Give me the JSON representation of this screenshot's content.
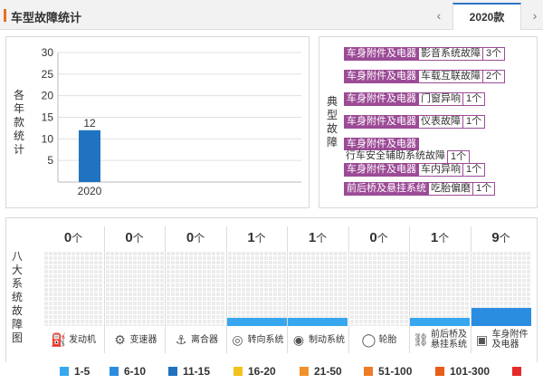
{
  "header": {
    "title": "车型故障统计",
    "prev_icon": "chevron-left-icon",
    "next_icon": "chevron-right-icon",
    "year_tab": "2020款"
  },
  "yearly_panel": {
    "label_chars": [
      "各",
      "年",
      "款",
      "统",
      "计"
    ],
    "chart_data": {
      "type": "bar",
      "categories": [
        "2020"
      ],
      "values": [
        12
      ],
      "ylim": [
        0,
        30
      ],
      "yticks": [
        5,
        10,
        15,
        20,
        25,
        30
      ],
      "bar_color": "#1f73c0",
      "data_labels": [
        "12"
      ]
    }
  },
  "typical_faults": {
    "label_chars": [
      "典",
      "型",
      "故",
      "障"
    ],
    "items": [
      {
        "category": "车身附件及电器",
        "fault": "影音系统故障",
        "count": "3个"
      },
      {
        "category": "车身附件及电器",
        "fault": "车载互联故障",
        "count": "2个"
      },
      {
        "category": "车身附件及电器",
        "fault": "门窗异响",
        "count": "1个"
      },
      {
        "category": "车身附件及电器",
        "fault": "仪表故障",
        "count": "1个"
      },
      {
        "category": "车身附件及电器",
        "fault": "行车安全辅助系统故障",
        "count": "1个"
      },
      {
        "category": "车身附件及电器",
        "fault": "车内异响",
        "count": "1个"
      },
      {
        "category": "前后桥及悬挂系统",
        "fault": "吃胎偏磨",
        "count": "1个"
      }
    ],
    "accent_color": "#9c4b96"
  },
  "systems_panel": {
    "label_chars": [
      "八",
      "大",
      "系",
      "统",
      "故",
      "障",
      "图"
    ],
    "unit": "个",
    "systems": [
      {
        "name": "发动机",
        "count": "0",
        "level": 0,
        "icon": "engine-icon"
      },
      {
        "name": "变速器",
        "count": "0",
        "level": 0,
        "icon": "gear-shift-icon"
      },
      {
        "name": "离合器",
        "count": "0",
        "level": 0,
        "icon": "clutch-pedal-icon"
      },
      {
        "name": "转向系统",
        "count": "1",
        "level": 1,
        "icon": "steering-wheel-icon"
      },
      {
        "name": "制动系统",
        "count": "1",
        "level": 1,
        "icon": "brake-disc-icon"
      },
      {
        "name": "轮胎",
        "count": "0",
        "level": 0,
        "icon": "tire-icon"
      },
      {
        "name": "前后桥及悬挂系统",
        "name_lines": [
          "前后桥及",
          "悬挂系统"
        ],
        "count": "1",
        "level": 1,
        "icon": "suspension-icon"
      },
      {
        "name": "车身附件及电器",
        "name_lines": [
          "车身附件",
          "及电器"
        ],
        "count": "9",
        "level": 2,
        "icon": "camera-icon"
      }
    ]
  },
  "legend": [
    {
      "label": "1-5",
      "color": "#37a7ef"
    },
    {
      "label": "6-10",
      "color": "#2b8de0"
    },
    {
      "label": "11-15",
      "color": "#1f73c0"
    },
    {
      "label": "16-20",
      "color": "#f2c21b"
    },
    {
      "label": "21-50",
      "color": "#f0922a"
    },
    {
      "label": "51-100",
      "color": "#ee7b25"
    },
    {
      "label": "101-300",
      "color": "#e85c1a"
    },
    {
      "label": "",
      "color": "#e62a2a"
    }
  ]
}
